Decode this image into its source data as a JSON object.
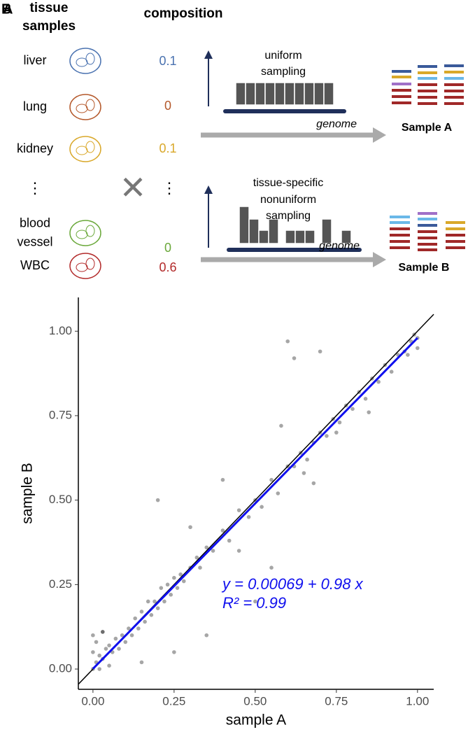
{
  "panel_a": {
    "panel_label": "A",
    "header_samples": [
      "tissue",
      "samples"
    ],
    "header_composition": "composition",
    "tissues": [
      {
        "label": [
          "liver"
        ],
        "value": 0.1,
        "color": "#4a72b0"
      },
      {
        "label": [
          "lung"
        ],
        "value": 0,
        "color": "#b4582a"
      },
      {
        "label": [
          "kidney"
        ],
        "value": 0.1,
        "color": "#d9a82a"
      },
      {
        "label": [
          "blood",
          "vessel"
        ],
        "value": 0,
        "color": "#6aa83a"
      },
      {
        "label": [
          "WBC"
        ],
        "value": 0.6,
        "color": "#b22a2a"
      }
    ],
    "ellipsis": "⋮",
    "times": "✕",
    "top_sampling": {
      "label": [
        "uniform",
        "sampling"
      ],
      "genome": "genome",
      "sample": "Sample A"
    },
    "bottom_sampling": {
      "label": [
        "tissue-specific",
        "nonuniform",
        "sampling"
      ],
      "genome": "genome",
      "sample": "Sample B"
    }
  },
  "chart_data": {
    "type": "scatter",
    "panel_label": "B",
    "xlabel": "sample A",
    "ylabel": "sample B",
    "color": "#000000",
    "xlim": [
      -0.045,
      1.05
    ],
    "ylim": [
      -0.06,
      1.1
    ],
    "xticks": [
      {
        "value": 0,
        "label": "0.00"
      },
      {
        "value": 0.25,
        "label": "0.25"
      },
      {
        "value": 0.5,
        "label": "0.50"
      },
      {
        "value": 0.75,
        "label": "0.75"
      },
      {
        "value": 1,
        "label": "1.00"
      }
    ],
    "yticks": [
      {
        "value": 0,
        "label": "0.00"
      },
      {
        "value": 0.25,
        "label": "0.25"
      },
      {
        "value": 0.5,
        "label": "0.50"
      },
      {
        "value": 0.75,
        "label": "0.75"
      },
      {
        "value": 1,
        "label": "1.00"
      }
    ],
    "x": [
      0,
      0,
      0,
      0.01,
      0.01,
      0.02,
      0.02,
      0.03,
      0.03,
      0.04,
      0.05,
      0.05,
      0.06,
      0.07,
      0.08,
      0.09,
      0.1,
      0.11,
      0.12,
      0.13,
      0.14,
      0.15,
      0.16,
      0.17,
      0.18,
      0.19,
      0.2,
      0.21,
      0.22,
      0.23,
      0.24,
      0.25,
      0.26,
      0.27,
      0.28,
      0.3,
      0.32,
      0.33,
      0.35,
      0.37,
      0.4,
      0.42,
      0.45,
      0.48,
      0.5,
      0.52,
      0.55,
      0.57,
      0.6,
      0.62,
      0.64,
      0.66,
      0.68,
      0.7,
      0.72,
      0.74,
      0.76,
      0.78,
      0.8,
      0.82,
      0.84,
      0.86,
      0.88,
      0.9,
      0.92,
      0.94,
      0.96,
      0.98,
      1,
      1,
      0.99,
      0.97,
      0.85,
      0.75,
      0.65,
      0.6,
      0.62,
      0.7,
      0.2,
      0.4,
      0.5,
      0.55,
      0.35,
      0.25,
      0.3,
      0.45,
      0.03,
      0.15,
      0.58,
      0.68
    ],
    "values": [
      0,
      0.05,
      0.1,
      0.02,
      0.08,
      0,
      0.04,
      0.11,
      0.03,
      0.06,
      0.01,
      0.07,
      0.05,
      0.09,
      0.06,
      0.1,
      0.08,
      0.12,
      0.1,
      0.15,
      0.12,
      0.17,
      0.14,
      0.2,
      0.16,
      0.2,
      0.18,
      0.24,
      0.2,
      0.25,
      0.22,
      0.27,
      0.24,
      0.28,
      0.26,
      0.3,
      0.33,
      0.3,
      0.36,
      0.35,
      0.41,
      0.38,
      0.47,
      0.45,
      0.5,
      0.48,
      0.56,
      0.52,
      0.6,
      0.6,
      0.64,
      0.62,
      0.67,
      0.7,
      0.69,
      0.74,
      0.73,
      0.78,
      0.77,
      0.82,
      0.8,
      0.86,
      0.85,
      0.9,
      0.88,
      0.93,
      0.94,
      0.97,
      0.98,
      0.95,
      0.99,
      0.93,
      0.76,
      0.7,
      0.58,
      0.97,
      0.92,
      0.94,
      0.5,
      0.56,
      0.2,
      0.3,
      0.1,
      0.05,
      0.42,
      0.35,
      0.11,
      0.02,
      0.72,
      0.55
    ],
    "fit": {
      "x": [
        0,
        1
      ],
      "values": [
        0.00069,
        0.98
      ],
      "color": "#1010ee"
    },
    "annotations": [
      "y = 0.00069 + 0.98 x",
      "R² = 0.99"
    ]
  }
}
